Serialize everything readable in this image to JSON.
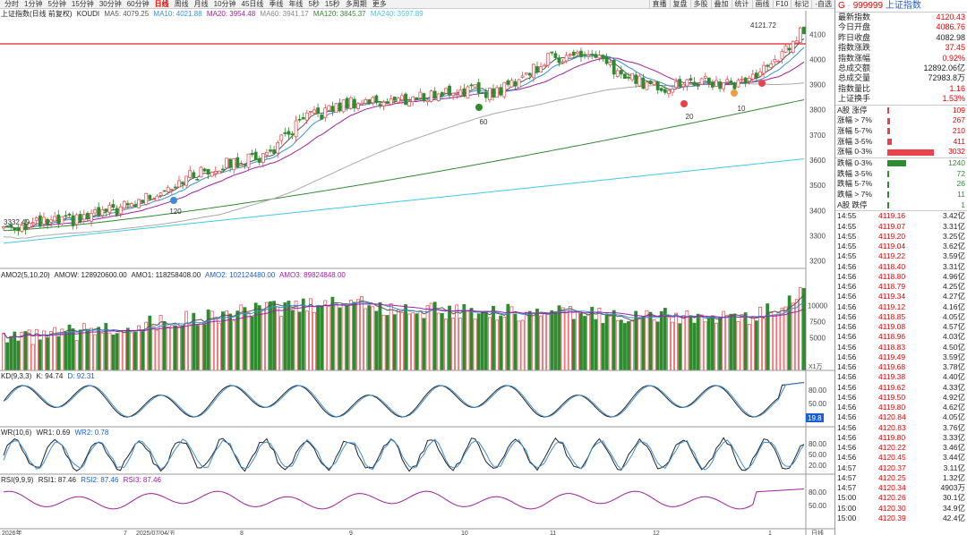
{
  "toolbar": {
    "periods": [
      "分时",
      "1分钟",
      "5分钟",
      "15分钟",
      "30分钟",
      "60分钟",
      "日线",
      "周线",
      "月线",
      "10分钟",
      "45日线",
      "季线",
      "年线",
      "5秒",
      "15秒",
      "多周期",
      "更多"
    ],
    "active": "日线",
    "right_buttons": [
      "直播",
      "复盘",
      "多股",
      "叠加",
      "统计",
      "画线",
      "F10",
      "标记",
      "-自选"
    ]
  },
  "main_info": {
    "title": "上证指数(日线 前复权)",
    "ma_label": "KOUDI",
    "ma5": "MA5: 4079.25",
    "ma10": "MA10: 4021.88",
    "ma20": "MA20: 3954.48",
    "ma60": "MA60: 3941.17",
    "ma120": "MA120: 3845.37",
    "ma240": "MA240: 3597.89"
  },
  "main_chart": {
    "y_ticks": [
      "4100",
      "4000",
      "3900",
      "3800",
      "3700",
      "3600",
      "3500",
      "3400",
      "3300",
      "3200"
    ],
    "high_label": "4121.72",
    "low_label": "3332.49",
    "markers": [
      "120",
      "60",
      "20",
      "10"
    ]
  },
  "amo_info": {
    "title": "AMO2(5,10,20)",
    "amow": "AMOW: 128920600.00",
    "amo1": "AMO1: 118258408.00",
    "amo2": "AMO2: 102124480.00",
    "amo3": "AMO3: 89824848.00",
    "y_ticks": [
      "10000",
      "7500",
      "5000"
    ],
    "unit": "X1万"
  },
  "kd_info": {
    "title": "KD(9,3,3)",
    "k": "K: 94.74",
    "d": "D: 92.31",
    "y_ticks": [
      "80.00",
      "50.00"
    ],
    "badge": "19.8"
  },
  "wr_info": {
    "title": "WR(10,6)",
    "wr1": "WR1: 0.69",
    "wr2": "WR2: 0.78",
    "y_ticks": [
      "80.00",
      "50.00",
      "20.00"
    ]
  },
  "rsi_info": {
    "title": "RSI(9,9,9)",
    "rsi1": "RSI1: 87.46",
    "rsi2": "RSI2: 87.46",
    "rsi3": "RSI3: 87.46",
    "y_ticks": [
      "80.00",
      "50.00"
    ]
  },
  "x_axis": {
    "labels": [
      "2026年",
      "7",
      "2025/07/04/五",
      "8",
      "9",
      "10",
      "11",
      "12",
      "1"
    ],
    "corner": "日线"
  },
  "right_panel": {
    "code": "999999",
    "prefix": "G",
    "name": "上证指数",
    "stats": [
      {
        "label": "最新指数",
        "value": "4120.43"
      },
      {
        "label": "今日开盘",
        "value": "4086.76"
      },
      {
        "label": "昨日收盘",
        "value": "4082.98"
      },
      {
        "label": "指数涨跌",
        "value": "37.45"
      },
      {
        "label": "指数涨幅",
        "value": "0.92%"
      },
      {
        "label": "总成交额",
        "value": "12892.06亿"
      },
      {
        "label": "总成交量",
        "value": "72983.8万"
      },
      {
        "label": "指数量比",
        "value": "1.16"
      },
      {
        "label": "上证换手",
        "value": "1.53%"
      }
    ],
    "dist_up": [
      {
        "label": "A股 涨停",
        "count": "109",
        "frac": 0.02
      },
      {
        "label": "涨幅 > 7%",
        "count": "267",
        "frac": 0.06
      },
      {
        "label": "涨幅 5-7%",
        "count": "210",
        "frac": 0.05
      },
      {
        "label": "涨幅 3-5%",
        "count": "411",
        "frac": 0.1
      },
      {
        "label": "涨幅 0-3%",
        "count": "3032",
        "frac": 1.0
      }
    ],
    "dist_down": [
      {
        "label": "跌幅 0-3%",
        "count": "1240",
        "frac": 0.4
      },
      {
        "label": "跌幅 3-5%",
        "count": "72",
        "frac": 0.02
      },
      {
        "label": "跌幅 5-7%",
        "count": "26",
        "frac": 0.01
      },
      {
        "label": "跌幅 > 7%",
        "count": "11",
        "frac": 0.01
      },
      {
        "label": "A股 跌停",
        "count": "1",
        "frac": 0.01
      }
    ],
    "ticks": [
      [
        "14:55",
        "4119.16",
        "3.42亿"
      ],
      [
        "14:55",
        "4119.07",
        "3.31亿"
      ],
      [
        "14:55",
        "4119.20",
        "3.25亿"
      ],
      [
        "14:55",
        "4119.04",
        "3.62亿"
      ],
      [
        "14:55",
        "4119.22",
        "3.59亿"
      ],
      [
        "14:56",
        "4118.40",
        "3.31亿"
      ],
      [
        "14:56",
        "4118.80",
        "4.96亿"
      ],
      [
        "14:56",
        "4118.79",
        "4.25亿"
      ],
      [
        "14:56",
        "4119.34",
        "4.27亿"
      ],
      [
        "14:56",
        "4119.12",
        "4.16亿"
      ],
      [
        "14:56",
        "4118.85",
        "4.05亿"
      ],
      [
        "14:56",
        "4119.08",
        "4.57亿"
      ],
      [
        "14:56",
        "4118.96",
        "4.03亿"
      ],
      [
        "14:56",
        "4118.83",
        "4.50亿"
      ],
      [
        "14:56",
        "4119.49",
        "3.59亿"
      ],
      [
        "14:56",
        "4119.68",
        "3.78亿"
      ],
      [
        "14:56",
        "4119.38",
        "4.40亿"
      ],
      [
        "14:56",
        "4119.62",
        "4.33亿"
      ],
      [
        "14:56",
        "4119.50",
        "4.92亿"
      ],
      [
        "14:56",
        "4119.80",
        "4.62亿"
      ],
      [
        "14:56",
        "4120.84",
        "4.05亿"
      ],
      [
        "14:56",
        "4120.83",
        "3.76亿"
      ],
      [
        "14:56",
        "4119.80",
        "3.33亿"
      ],
      [
        "14:56",
        "4120.22",
        "3.46亿"
      ],
      [
        "14:56",
        "4120.45",
        "3.44亿"
      ],
      [
        "14:57",
        "4120.37",
        "3.11亿"
      ],
      [
        "14:57",
        "4120.25",
        "1.32亿"
      ],
      [
        "14:57",
        "4120.34",
        "4903万"
      ],
      [
        "15:00",
        "4120.26",
        "30.1亿"
      ],
      [
        "15:00",
        "4120.30",
        "34.9亿"
      ],
      [
        "15:00",
        "4120.39",
        "42.4亿"
      ]
    ]
  },
  "colors": {
    "up": "#e8434a",
    "down": "#2e8b2e",
    "ma5": "#555555",
    "ma10": "#3a8fd8",
    "ma20": "#a020a0",
    "ma60": "#aaaaaa",
    "ma120": "#2e8b2e",
    "ma240": "#3ec9e8"
  }
}
